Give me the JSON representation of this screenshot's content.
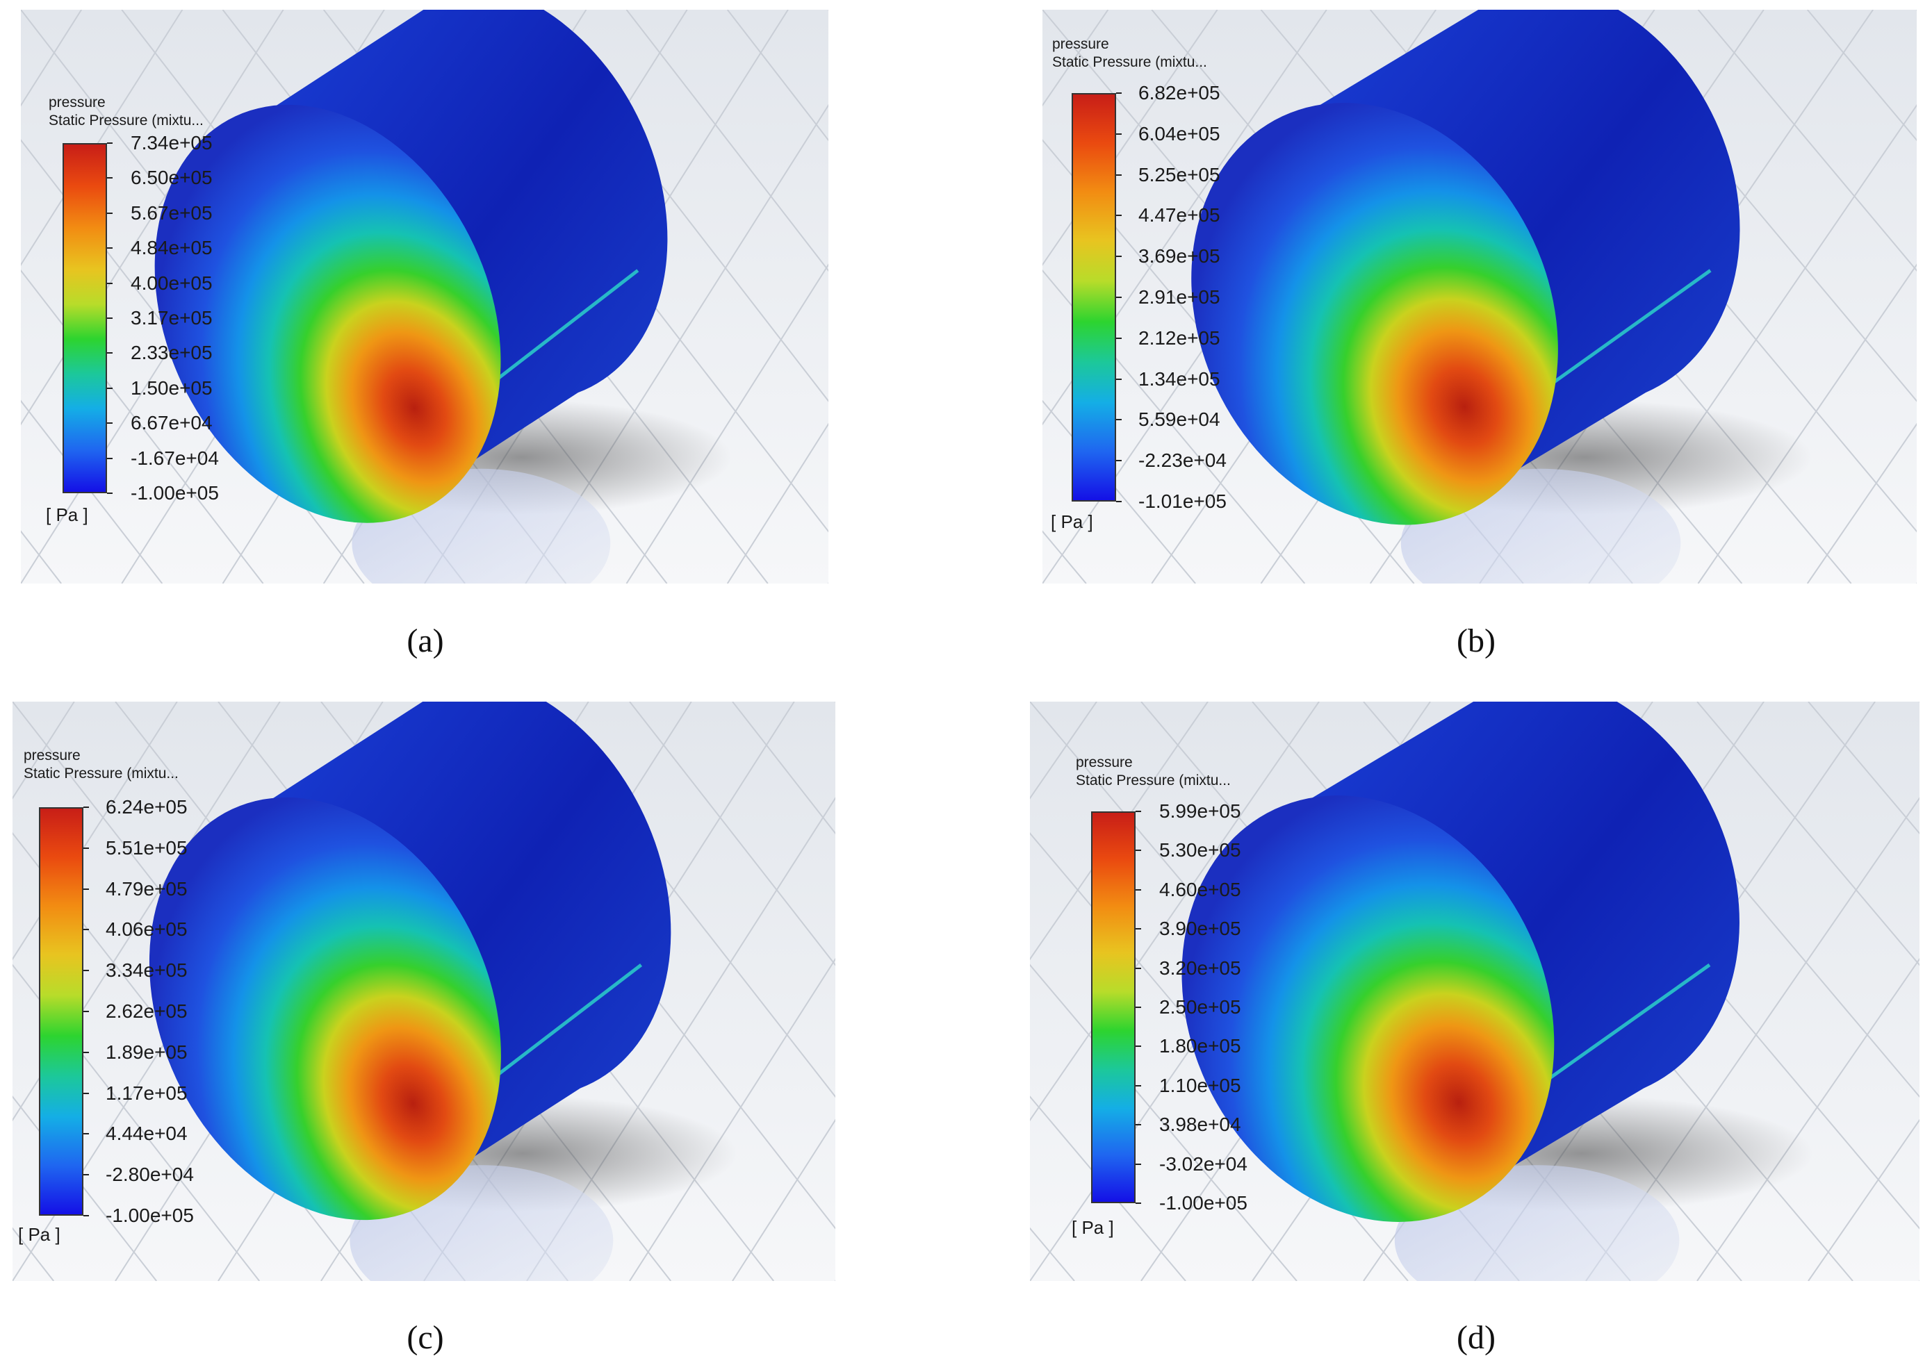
{
  "panels": [
    {
      "id": "a",
      "legend": {
        "variable": "pressure",
        "description": "Static Pressure (mixtu...",
        "units": "[ Pa ]",
        "ticks": [
          "7.34e+05",
          "6.50e+05",
          "5.67e+05",
          "4.84e+05",
          "4.00e+05",
          "3.17e+05",
          "2.33e+05",
          "1.50e+05",
          "6.67e+04",
          "-1.67e+04",
          "-1.00e+05"
        ]
      },
      "caption": "(a)"
    },
    {
      "id": "b",
      "legend": {
        "variable": "pressure",
        "description": "Static Pressure (mixtu...",
        "units": "[ Pa ]",
        "ticks": [
          "6.82e+05",
          "6.04e+05",
          "5.25e+05",
          "4.47e+05",
          "3.69e+05",
          "2.91e+05",
          "2.12e+05",
          "1.34e+05",
          "5.59e+04",
          "-2.23e+04",
          "-1.01e+05"
        ]
      },
      "caption": "(b)"
    },
    {
      "id": "c",
      "legend": {
        "variable": "pressure",
        "description": "Static Pressure (mixtu...",
        "units": "[ Pa ]",
        "ticks": [
          "6.24e+05",
          "5.51e+05",
          "4.79e+05",
          "4.06e+05",
          "3.34e+05",
          "2.62e+05",
          "1.89e+05",
          "1.17e+05",
          "4.44e+04",
          "-2.80e+04",
          "-1.00e+05"
        ]
      },
      "caption": "(c)"
    },
    {
      "id": "d",
      "legend": {
        "variable": "pressure",
        "description": "Static Pressure (mixtu...",
        "units": "[ Pa ]",
        "ticks": [
          "5.99e+05",
          "5.30e+05",
          "4.60e+05",
          "3.90e+05",
          "3.20e+05",
          "2.50e+05",
          "1.80e+05",
          "1.10e+05",
          "3.98e+04",
          "-3.02e+04",
          "-1.00e+05"
        ]
      },
      "caption": "(d)"
    }
  ],
  "colors": {
    "background_grid": "#e9edf2",
    "cylinder_outer": "#1a2fc6",
    "high_pressure": "#c81e17",
    "low_pressure": "#1410e6"
  }
}
